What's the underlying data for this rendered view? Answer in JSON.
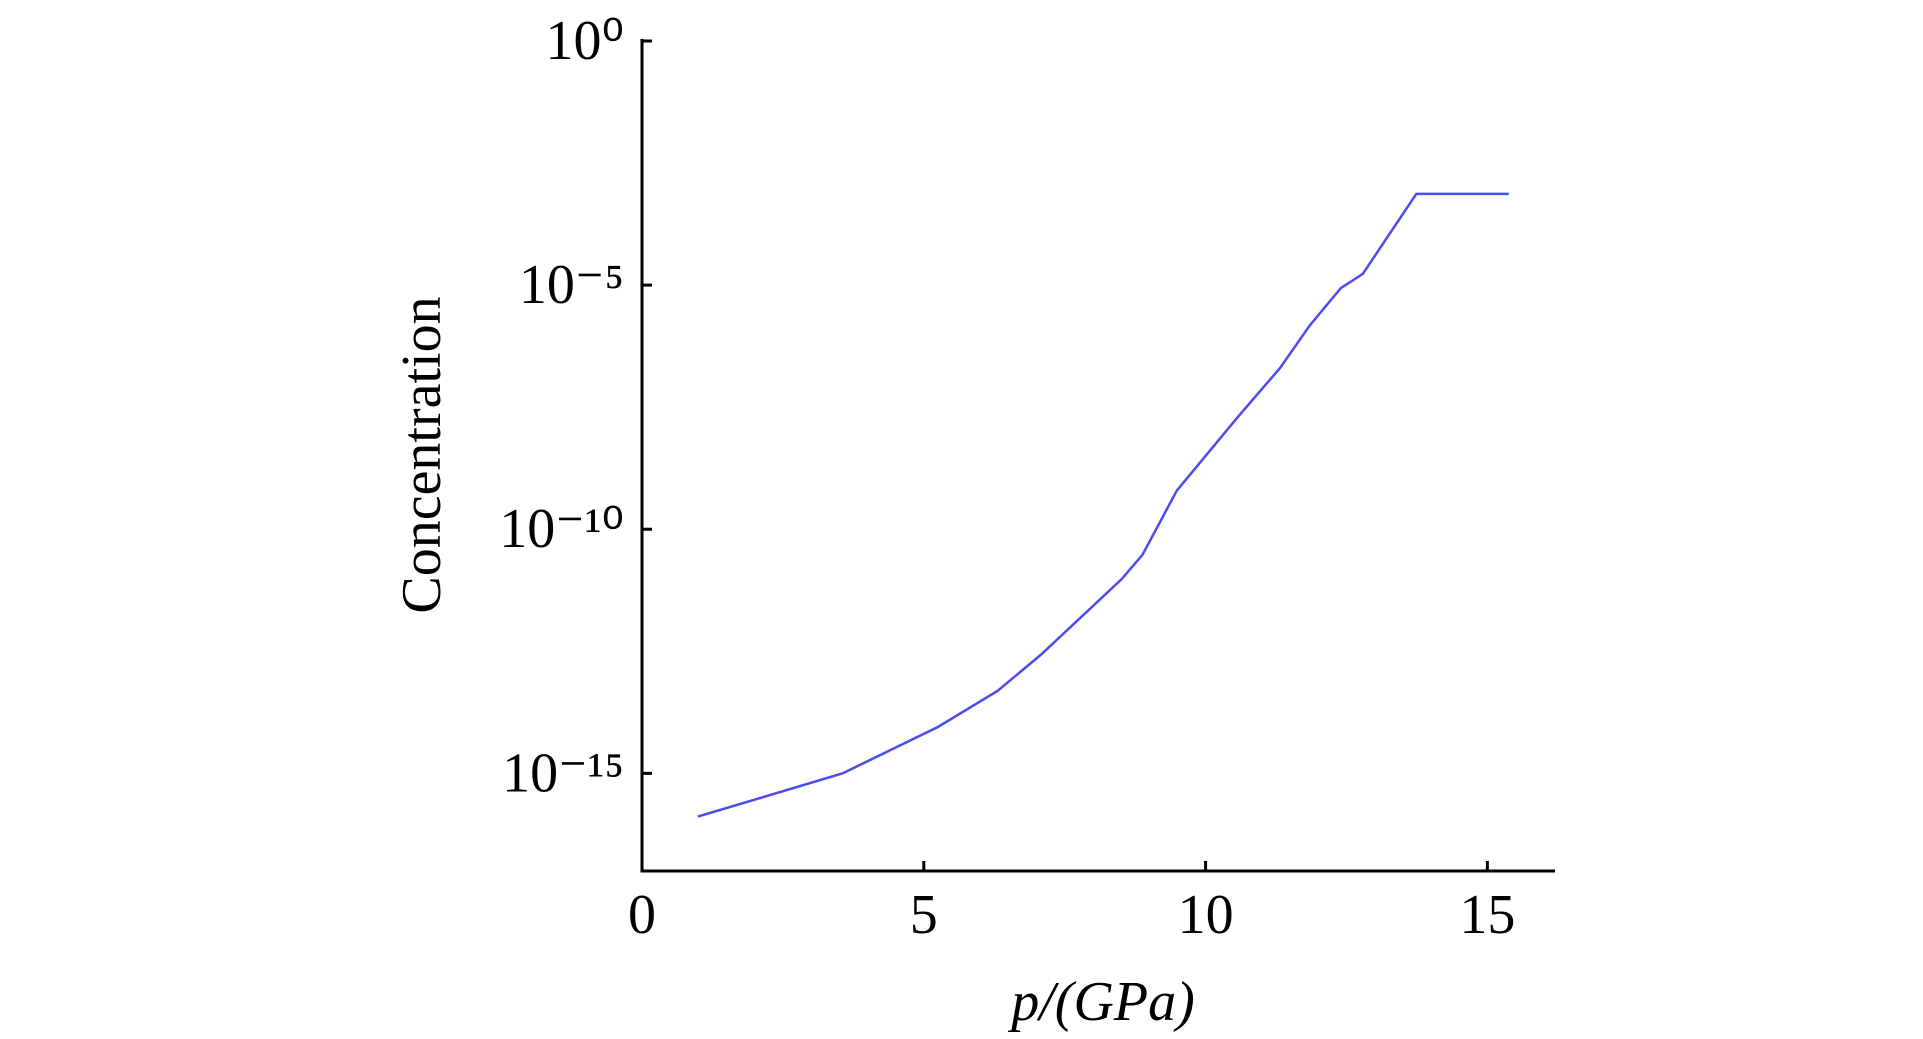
{
  "chart_data": {
    "type": "line",
    "x_label": "p/(GPa)",
    "y_label": "Concentration",
    "y_log": true,
    "xlim": [
      0,
      16.2
    ],
    "ylim": [
      1e-17,
      1
    ],
    "xticks": [
      0,
      5,
      10,
      15
    ],
    "yticks": [
      {
        "value": 1,
        "label": "10⁰"
      },
      {
        "value": 1e-05,
        "label": "10⁻⁵"
      },
      {
        "value": 1e-10,
        "label": "10⁻¹⁰"
      },
      {
        "value": 1e-15,
        "label": "10⁻¹⁵"
      }
    ],
    "series": [
      {
        "color": "#4b4bf0",
        "x": [
          0.99,
          3.56,
          5.25,
          6.31,
          7.08,
          8.51,
          8.88,
          9.49,
          10.59,
          11.32,
          11.85,
          12.4,
          12.79,
          13.74,
          15.38
        ],
        "values": [
          1.3e-16,
          1e-15,
          8.9e-15,
          4.9e-14,
          2.7e-13,
          9.5e-12,
          3e-11,
          6.2e-10,
          2.1e-08,
          2e-07,
          1.5e-06,
          8.7e-06,
          1.7e-05,
          0.00074,
          0.00074
        ]
      }
    ]
  }
}
